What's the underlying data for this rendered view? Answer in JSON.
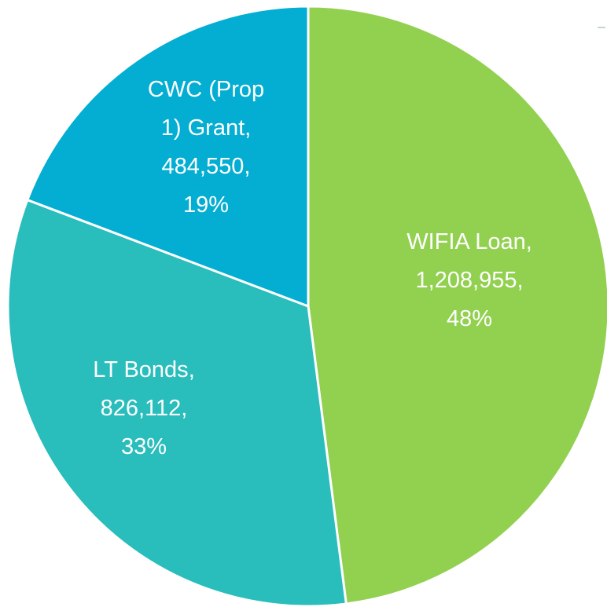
{
  "chart_data": {
    "type": "pie",
    "categories": [
      "WIFIA Loan",
      "LT Bonds",
      "CWC (Prop 1) Grant"
    ],
    "values": [
      1208955,
      826112,
      484550
    ],
    "value_labels": [
      "1,208,955",
      "826,112",
      "484,550"
    ],
    "percents": [
      48,
      33,
      19
    ],
    "percent_labels": [
      "48%",
      "33%",
      "19%"
    ],
    "label_separator": ",",
    "colors": [
      "#92d050",
      "#29bdbc",
      "#03aed2"
    ]
  }
}
